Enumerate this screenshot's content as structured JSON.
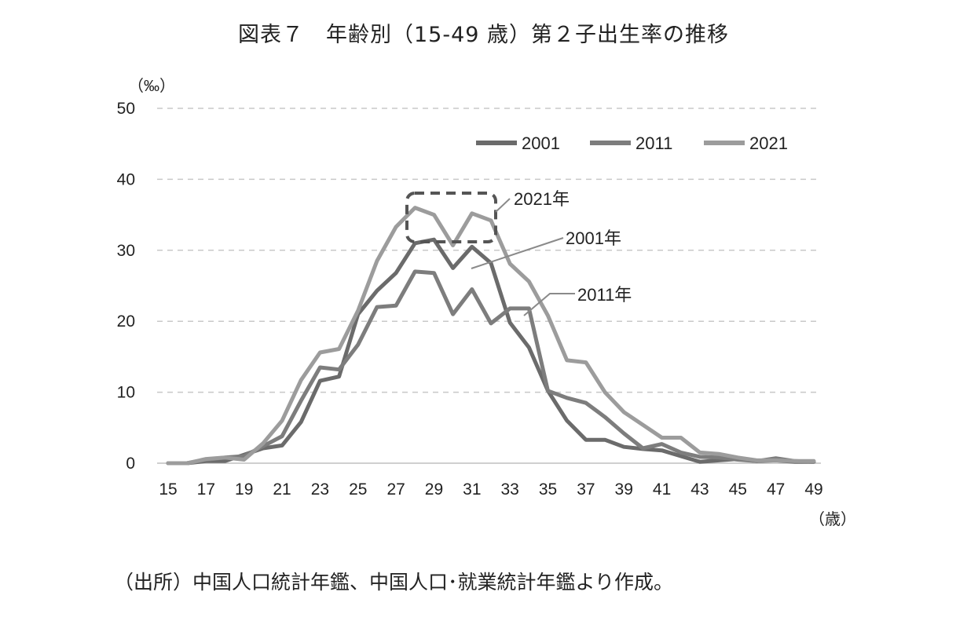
{
  "title": "図表７　年齢別（15-49 歳）第２子出生率の推移",
  "source": "（出所）中国人口統計年鑑、中国人口･就業統計年鑑より作成。",
  "chart_data": {
    "type": "line",
    "ylabel": "（‰）",
    "xlabel": "（歳）",
    "ylim": [
      0,
      50
    ],
    "yticks": [
      0,
      10,
      20,
      30,
      40,
      50
    ],
    "xlim": [
      15,
      49
    ],
    "xticks": [
      15,
      17,
      19,
      21,
      23,
      25,
      27,
      29,
      31,
      33,
      35,
      37,
      39,
      41,
      43,
      45,
      47,
      49
    ],
    "grid": "horizontal-dashed",
    "legend_position": "top-right",
    "x": [
      15,
      16,
      17,
      18,
      19,
      20,
      21,
      22,
      23,
      24,
      25,
      26,
      27,
      28,
      29,
      30,
      31,
      32,
      33,
      34,
      35,
      36,
      37,
      38,
      39,
      40,
      41,
      42,
      43,
      44,
      45,
      46,
      47,
      48,
      49
    ],
    "series": [
      {
        "name": "2001",
        "color": "#6b6b6b",
        "values": [
          0,
          0,
          0.3,
          0.3,
          1.2,
          2.1,
          2.5,
          5.8,
          11.6,
          12.2,
          21.0,
          24.3,
          26.8,
          31.0,
          31.5,
          27.5,
          30.5,
          28.2,
          19.8,
          16.3,
          10.2,
          6.0,
          3.3,
          3.3,
          2.3,
          2.0,
          1.8,
          1.0,
          0.2,
          0.4,
          0.6,
          0.3,
          0.4,
          0.2,
          0.2
        ]
      },
      {
        "name": "2011",
        "color": "#7d7d7d",
        "values": [
          0,
          0,
          0.5,
          0.8,
          1.0,
          2.4,
          3.8,
          8.8,
          13.5,
          13.2,
          16.7,
          22.0,
          22.2,
          27.0,
          26.8,
          21.0,
          24.5,
          19.7,
          21.8,
          21.8,
          10.2,
          9.2,
          8.5,
          6.5,
          4.2,
          2.1,
          2.7,
          1.5,
          0.9,
          0.8,
          0.5,
          0.3,
          0.7,
          0.3,
          0.2
        ]
      },
      {
        "name": "2021",
        "color": "#9c9c9c",
        "values": [
          0,
          0,
          0.6,
          0.8,
          0.5,
          2.8,
          6.0,
          11.7,
          15.6,
          16.1,
          21.5,
          28.5,
          33.3,
          36.0,
          35.0,
          30.7,
          35.2,
          34.2,
          28.1,
          25.6,
          20.8,
          14.5,
          14.2,
          10.0,
          7.2,
          5.4,
          3.6,
          3.6,
          1.5,
          1.3,
          0.8,
          0.4,
          0.4,
          0.3,
          0.3
        ]
      }
    ],
    "annotations": [
      {
        "text": "2021年",
        "series": "2021"
      },
      {
        "text": "2001年",
        "series": "2001"
      },
      {
        "text": "2011年",
        "series": "2011"
      }
    ]
  }
}
